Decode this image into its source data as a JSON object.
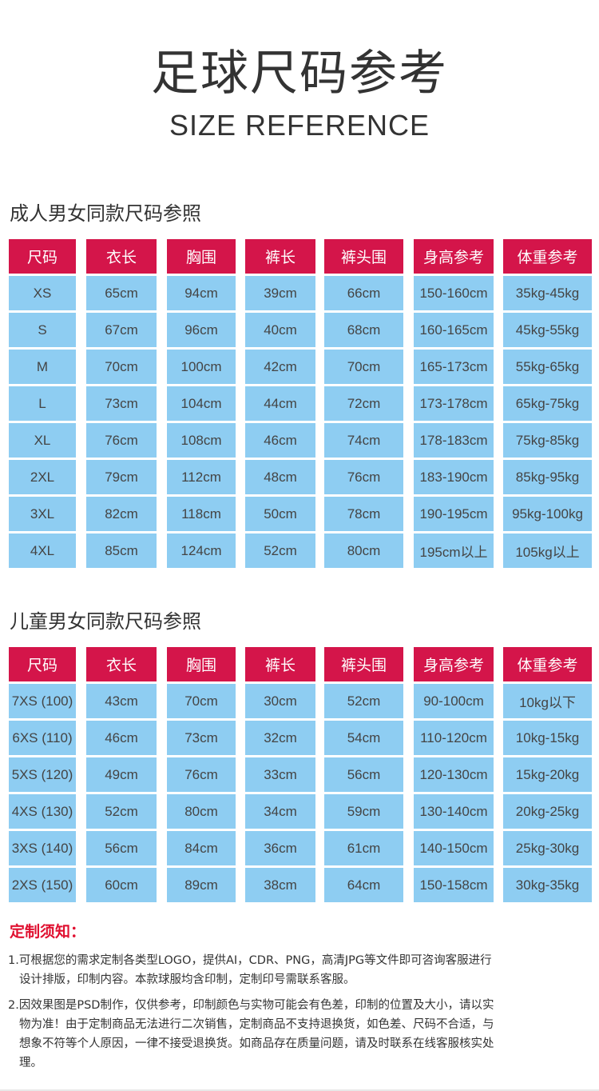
{
  "header": {
    "title_cn": "足球尺码参考",
    "title_en": "SIZE REFERENCE"
  },
  "adult": {
    "heading": "成人男女同款尺码参照",
    "columns": [
      "尺码",
      "衣长",
      "胸围",
      "裤长",
      "裤头围",
      "身高参考",
      "体重参考"
    ],
    "rows": [
      [
        "XS",
        "65cm",
        "94cm",
        "39cm",
        "66cm",
        "150-160cm",
        "35kg-45kg"
      ],
      [
        "S",
        "67cm",
        "96cm",
        "40cm",
        "68cm",
        "160-165cm",
        "45kg-55kg"
      ],
      [
        "M",
        "70cm",
        "100cm",
        "42cm",
        "70cm",
        "165-173cm",
        "55kg-65kg"
      ],
      [
        "L",
        "73cm",
        "104cm",
        "44cm",
        "72cm",
        "173-178cm",
        "65kg-75kg"
      ],
      [
        "XL",
        "76cm",
        "108cm",
        "46cm",
        "74cm",
        "178-183cm",
        "75kg-85kg"
      ],
      [
        "2XL",
        "79cm",
        "112cm",
        "48cm",
        "76cm",
        "183-190cm",
        "85kg-95kg"
      ],
      [
        "3XL",
        "82cm",
        "118cm",
        "50cm",
        "78cm",
        "190-195cm",
        "95kg-100kg"
      ],
      [
        "4XL",
        "85cm",
        "124cm",
        "52cm",
        "80cm",
        "195cm以上",
        "105kg以上"
      ]
    ]
  },
  "kids": {
    "heading": "儿童男女同款尺码参照",
    "columns": [
      "尺码",
      "衣长",
      "胸围",
      "裤长",
      "裤头围",
      "身高参考",
      "体重参考"
    ],
    "rows": [
      [
        "7XS (100)",
        "43cm",
        "70cm",
        "30cm",
        "52cm",
        "90-100cm",
        "10kg以下"
      ],
      [
        "6XS (110)",
        "46cm",
        "73cm",
        "32cm",
        "54cm",
        "110-120cm",
        "10kg-15kg"
      ],
      [
        "5XS (120)",
        "49cm",
        "76cm",
        "33cm",
        "56cm",
        "120-130cm",
        "15kg-20kg"
      ],
      [
        "4XS (130)",
        "52cm",
        "80cm",
        "34cm",
        "59cm",
        "130-140cm",
        "20kg-25kg"
      ],
      [
        "3XS (140)",
        "56cm",
        "84cm",
        "36cm",
        "61cm",
        "140-150cm",
        "25kg-30kg"
      ],
      [
        "2XS (150)",
        "60cm",
        "89cm",
        "38cm",
        "64cm",
        "150-158cm",
        "30kg-35kg"
      ]
    ]
  },
  "notice": {
    "title": "定制须知：",
    "item1": [
      "1.可根据您的需求定制各类型LOGO，提供AI，CDR、PNG，高清JPG等文件即可咨询客服进行",
      "设计排版，印制内容。本款球服均含印制，定制印号需联系客服。"
    ],
    "item2": [
      "2.因效果图是PSD制作，仅供参考，印制颜色与实物可能会有色差，印制的位置及大小，请以实",
      "物为准！由于定制商品无法进行二次销售，定制商品不支持退换货，如色差、尺码不合适，与",
      "想象不符等个人原因，一律不接受退换货。如商品存在质量问题，请及时联系在线客服核实处",
      "理。"
    ]
  },
  "colors": {
    "header_bg": "#d4154a",
    "cell_bg": "#8ecdf2",
    "notice_title": "#e01030"
  }
}
